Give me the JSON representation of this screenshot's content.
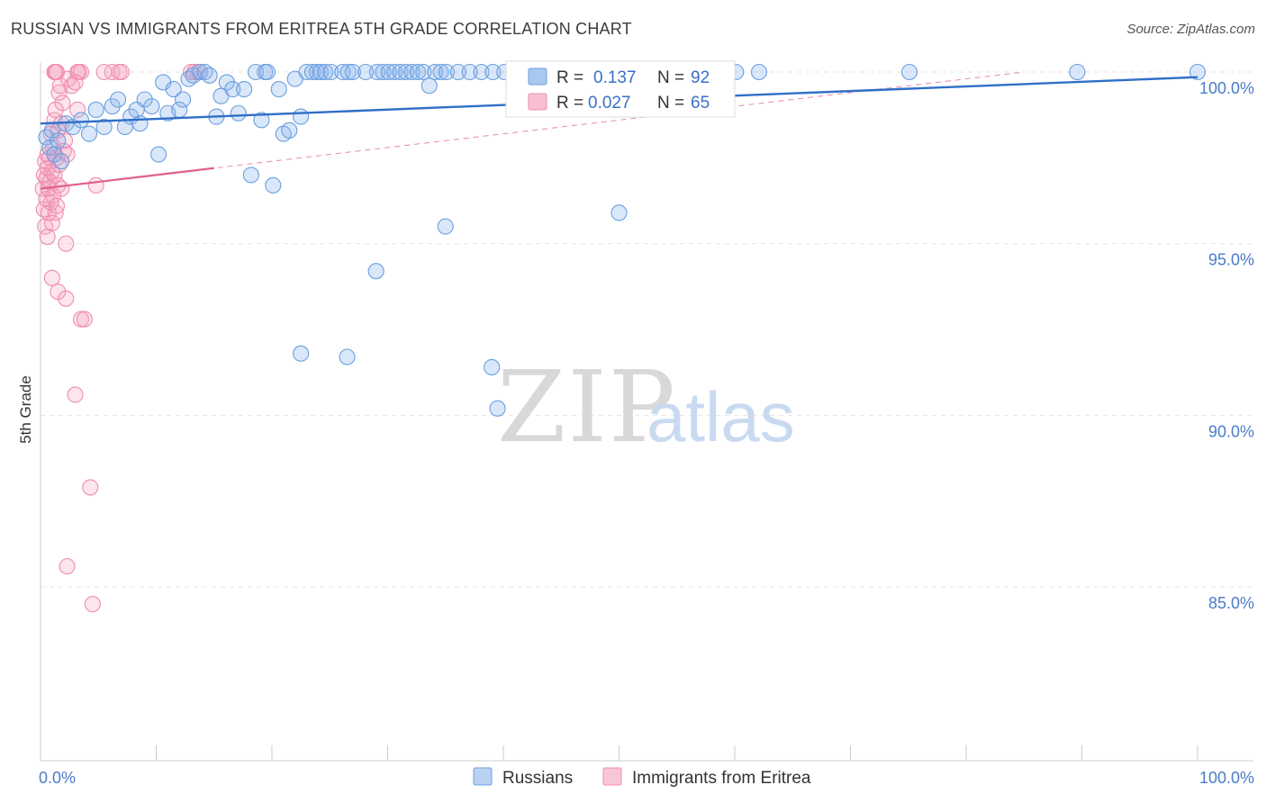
{
  "title": "RUSSIAN VS IMMIGRANTS FROM ERITREA 5TH GRADE CORRELATION CHART",
  "source": "Source: ZipAtlas.com",
  "watermark": {
    "zip": "ZIP",
    "atlas": "atlas"
  },
  "colors": {
    "blue": "#6a9fdf",
    "blue_line": "#2f6fc7",
    "pink": "#f08cb0",
    "pink_line": "#e0608c"
  },
  "legend": {
    "r_label": "R =",
    "n_label": "N =",
    "rows": [
      {
        "r": "0.137",
        "n": "92"
      },
      {
        "r": "0.027",
        "n": "65"
      }
    ]
  },
  "chart_data": {
    "type": "scatter",
    "title": "RUSSIAN VS IMMIGRANTS FROM ERITREA 5TH GRADE CORRELATION CHART",
    "xlabel": "",
    "ylabel": "5th Grade",
    "xlim": [
      0,
      100
    ],
    "ylim": [
      80.5,
      100.5
    ],
    "y_ticks": [
      {
        "value": 100,
        "label": "100.0%"
      },
      {
        "value": 95,
        "label": "95.0%"
      },
      {
        "value": 90,
        "label": "90.0%"
      },
      {
        "value": 85,
        "label": "85.0%"
      }
    ],
    "x_tick_labels": [
      {
        "value": 0,
        "label": "0.0%"
      },
      {
        "value": 100,
        "label": "100.0%"
      }
    ],
    "x_minor_ticks": [
      0,
      10,
      20,
      30,
      40,
      50,
      60,
      70,
      80,
      90,
      100
    ],
    "grid": true,
    "legend_position": "top-center",
    "series": [
      {
        "name": "Russians",
        "trend": {
          "x": [
            0,
            100
          ],
          "y": [
            98.5,
            99.85
          ]
        },
        "points": [
          [
            0.5,
            98.1
          ],
          [
            0.8,
            97.8
          ],
          [
            1.0,
            98.3
          ],
          [
            1.2,
            97.6
          ],
          [
            1.5,
            98.0
          ],
          [
            1.8,
            97.4
          ],
          [
            2.2,
            98.5
          ],
          [
            2.8,
            98.4
          ],
          [
            3.5,
            98.6
          ],
          [
            4.2,
            98.2
          ],
          [
            4.8,
            98.9
          ],
          [
            5.5,
            98.4
          ],
          [
            6.2,
            99.0
          ],
          [
            6.7,
            99.2
          ],
          [
            7.3,
            98.4
          ],
          [
            7.8,
            98.7
          ],
          [
            8.3,
            98.9
          ],
          [
            8.6,
            98.5
          ],
          [
            9.0,
            99.2
          ],
          [
            9.6,
            99.0
          ],
          [
            10.2,
            97.6
          ],
          [
            10.6,
            99.7
          ],
          [
            11.0,
            98.8
          ],
          [
            11.5,
            99.5
          ],
          [
            12.0,
            98.9
          ],
          [
            12.3,
            99.2
          ],
          [
            12.8,
            99.8
          ],
          [
            13.2,
            99.9
          ],
          [
            13.8,
            100
          ],
          [
            14.2,
            100
          ],
          [
            14.6,
            99.9
          ],
          [
            15.2,
            98.7
          ],
          [
            15.6,
            99.3
          ],
          [
            16.1,
            99.7
          ],
          [
            16.6,
            99.5
          ],
          [
            17.1,
            98.8
          ],
          [
            17.6,
            99.5
          ],
          [
            18.2,
            97.0
          ],
          [
            18.6,
            100
          ],
          [
            19.1,
            98.6
          ],
          [
            19.4,
            100
          ],
          [
            19.6,
            100
          ],
          [
            20.1,
            96.7
          ],
          [
            20.6,
            99.5
          ],
          [
            21.0,
            98.2
          ],
          [
            21.5,
            98.3
          ],
          [
            22.0,
            99.8
          ],
          [
            22.5,
            98.7
          ],
          [
            23.0,
            100
          ],
          [
            23.5,
            100
          ],
          [
            23.9,
            100
          ],
          [
            24.2,
            100
          ],
          [
            24.6,
            100
          ],
          [
            25.1,
            100
          ],
          [
            26.1,
            100
          ],
          [
            26.6,
            100
          ],
          [
            27.0,
            100
          ],
          [
            28.1,
            100
          ],
          [
            29.1,
            100
          ],
          [
            29.6,
            100
          ],
          [
            30.1,
            100
          ],
          [
            30.6,
            100
          ],
          [
            31.1,
            100
          ],
          [
            31.6,
            100
          ],
          [
            32.1,
            100
          ],
          [
            32.6,
            100
          ],
          [
            33.1,
            100
          ],
          [
            33.6,
            99.6
          ],
          [
            34.1,
            100
          ],
          [
            34.6,
            100
          ],
          [
            35.1,
            100
          ],
          [
            36.1,
            100
          ],
          [
            37.1,
            100
          ],
          [
            38.1,
            100
          ],
          [
            39.1,
            100
          ],
          [
            40.1,
            100
          ],
          [
            42.1,
            100
          ],
          [
            43.6,
            100
          ],
          [
            47.1,
            100
          ],
          [
            52.1,
            100
          ],
          [
            54.2,
            100
          ],
          [
            58.1,
            100
          ],
          [
            60.1,
            100
          ],
          [
            62.1,
            100
          ],
          [
            75.1,
            100
          ],
          [
            89.6,
            100
          ],
          [
            100,
            100
          ],
          [
            22.5,
            91.8
          ],
          [
            26.5,
            91.7
          ],
          [
            29.0,
            94.2
          ],
          [
            35.0,
            95.5
          ],
          [
            39.0,
            91.4
          ],
          [
            50.0,
            95.9
          ],
          [
            39.5,
            90.2
          ]
        ]
      },
      {
        "name": "Immigrants from Eritrea",
        "trend": {
          "x": [
            0,
            15
          ],
          "y": [
            96.6,
            97.2
          ]
        },
        "trend_extended": {
          "x": [
            0,
            85
          ],
          "y": [
            96.6,
            100
          ]
        },
        "points": [
          [
            0.2,
            96.6
          ],
          [
            0.3,
            97.0
          ],
          [
            0.3,
            96.0
          ],
          [
            0.4,
            97.4
          ],
          [
            0.4,
            95.5
          ],
          [
            0.5,
            96.9
          ],
          [
            0.5,
            96.3
          ],
          [
            0.6,
            95.2
          ],
          [
            0.6,
            97.2
          ],
          [
            0.7,
            96.6
          ],
          [
            0.7,
            95.9
          ],
          [
            0.8,
            97.5
          ],
          [
            0.8,
            96.8
          ],
          [
            0.9,
            98.2
          ],
          [
            0.9,
            96.2
          ],
          [
            1.0,
            97.1
          ],
          [
            1.0,
            95.6
          ],
          [
            1.1,
            97.8
          ],
          [
            1.1,
            96.4
          ],
          [
            1.2,
            98.6
          ],
          [
            1.2,
            97.0
          ],
          [
            1.3,
            98.9
          ],
          [
            1.3,
            95.9
          ],
          [
            1.4,
            97.5
          ],
          [
            1.5,
            98.3
          ],
          [
            1.5,
            96.7
          ],
          [
            1.6,
            99.4
          ],
          [
            1.6,
            97.3
          ],
          [
            1.7,
            99.6
          ],
          [
            1.8,
            98.5
          ],
          [
            1.8,
            96.6
          ],
          [
            1.9,
            99.1
          ],
          [
            2.0,
            97.7
          ],
          [
            2.1,
            98.0
          ],
          [
            2.2,
            95.0
          ],
          [
            2.3,
            97.6
          ],
          [
            2.4,
            99.8
          ],
          [
            1.2,
            100
          ],
          [
            1.3,
            100
          ],
          [
            1.4,
            100
          ],
          [
            3.2,
            100
          ],
          [
            3.3,
            100
          ],
          [
            3.5,
            100
          ],
          [
            5.5,
            100
          ],
          [
            6.2,
            100
          ],
          [
            6.8,
            100
          ],
          [
            7.0,
            100
          ],
          [
            13.0,
            100
          ],
          [
            13.3,
            100
          ],
          [
            13.6,
            100
          ],
          [
            1.0,
            94.0
          ],
          [
            1.5,
            93.6
          ],
          [
            2.2,
            93.4
          ],
          [
            3.5,
            92.8
          ],
          [
            3.8,
            92.8
          ],
          [
            3.0,
            90.6
          ],
          [
            4.3,
            87.9
          ],
          [
            2.3,
            85.6
          ],
          [
            4.5,
            84.5
          ],
          [
            3.2,
            98.9
          ],
          [
            4.8,
            96.7
          ],
          [
            2.7,
            99.6
          ],
          [
            3.0,
            99.7
          ],
          [
            0.6,
            97.6
          ],
          [
            1.4,
            96.1
          ]
        ]
      }
    ]
  },
  "bottom_legend": [
    {
      "label": "Russians"
    },
    {
      "label": "Immigrants from Eritrea"
    }
  ]
}
